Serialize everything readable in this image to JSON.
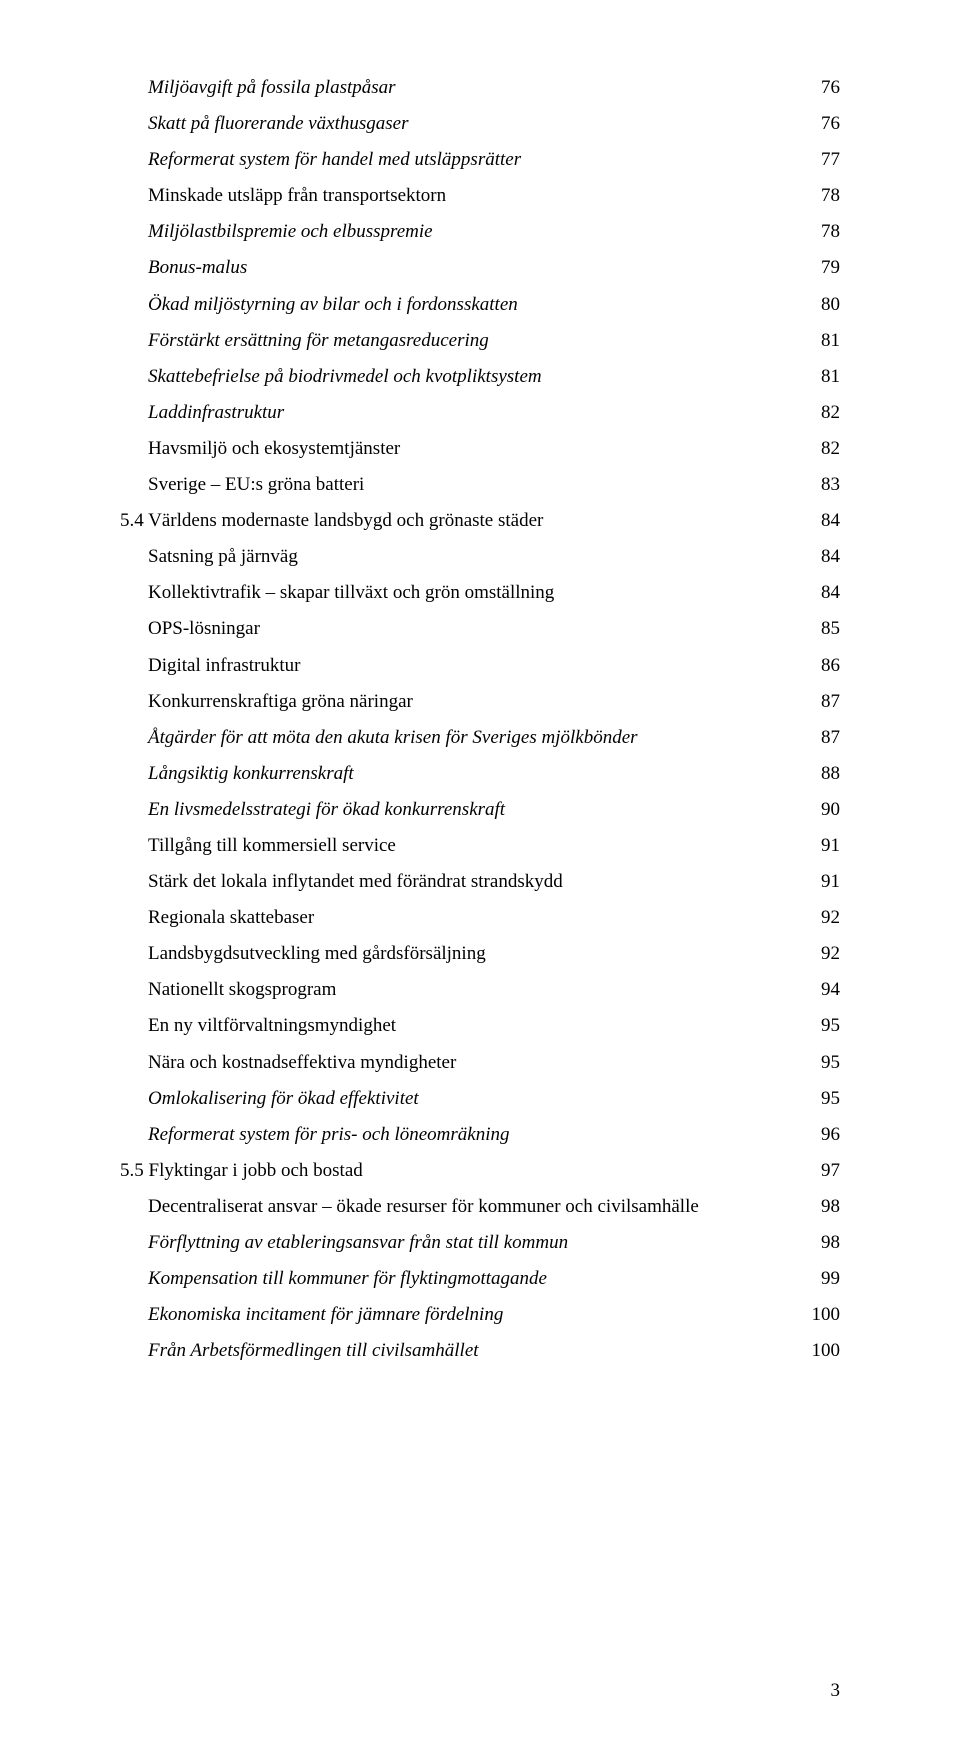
{
  "page_number": "3",
  "toc": [
    {
      "title": "Miljöavgift på fossila plastpåsar",
      "page": "76",
      "indent": 1,
      "italic": true
    },
    {
      "title": "Skatt på fluorerande växthusgaser",
      "page": "76",
      "indent": 1,
      "italic": true
    },
    {
      "title": "Reformerat system för handel med utsläppsrätter",
      "page": "77",
      "indent": 1,
      "italic": true
    },
    {
      "title": "Minskade utsläpp från transportsektorn",
      "page": "78",
      "indent": 1,
      "italic": false
    },
    {
      "title": "Miljölastbilspremie och elbusspremie",
      "page": "78",
      "indent": 1,
      "italic": true
    },
    {
      "title": "Bonus-malus",
      "page": "79",
      "indent": 1,
      "italic": true
    },
    {
      "title": "Ökad miljöstyrning av bilar och i fordonsskatten",
      "page": "80",
      "indent": 1,
      "italic": true
    },
    {
      "title": "Förstärkt ersättning för metangasreducering",
      "page": "81",
      "indent": 1,
      "italic": true
    },
    {
      "title": "Skattebefrielse på biodrivmedel och kvotpliktsystem",
      "page": "81",
      "indent": 1,
      "italic": true
    },
    {
      "title": "Laddinfrastruktur",
      "page": "82",
      "indent": 1,
      "italic": true
    },
    {
      "title": "Havsmiljö och ekosystemtjänster",
      "page": "82",
      "indent": 1,
      "italic": false
    },
    {
      "title": "Sverige – EU:s gröna batteri",
      "page": "83",
      "indent": 1,
      "italic": false
    },
    {
      "title": "5.4 Världens modernaste landsbygd och grönaste städer",
      "page": "84",
      "indent": 0,
      "italic": false
    },
    {
      "title": "Satsning på järnväg",
      "page": "84",
      "indent": 1,
      "italic": false
    },
    {
      "title": "Kollektivtrafik – skapar tillväxt och grön omställning",
      "page": "84",
      "indent": 1,
      "italic": false
    },
    {
      "title": "OPS-lösningar",
      "page": "85",
      "indent": 1,
      "italic": false
    },
    {
      "title": "Digital infrastruktur",
      "page": "86",
      "indent": 1,
      "italic": false
    },
    {
      "title": "Konkurrenskraftiga gröna näringar",
      "page": "87",
      "indent": 1,
      "italic": false
    },
    {
      "title": "Åtgärder för att möta den akuta krisen för Sveriges mjölkbönder",
      "page": "87",
      "indent": 1,
      "italic": true
    },
    {
      "title": "Långsiktig konkurrenskraft",
      "page": "88",
      "indent": 1,
      "italic": true
    },
    {
      "title": "En livsmedelsstrategi för ökad konkurrenskraft",
      "page": "90",
      "indent": 1,
      "italic": true
    },
    {
      "title": "Tillgång till kommersiell service",
      "page": "91",
      "indent": 1,
      "italic": false
    },
    {
      "title": "Stärk det lokala inflytandet med förändrat strandskydd",
      "page": "91",
      "indent": 1,
      "italic": false
    },
    {
      "title": "Regionala skattebaser",
      "page": "92",
      "indent": 1,
      "italic": false
    },
    {
      "title": "Landsbygdsutveckling med gårdsförsäljning",
      "page": "92",
      "indent": 1,
      "italic": false
    },
    {
      "title": "Nationellt skogsprogram",
      "page": "94",
      "indent": 1,
      "italic": false
    },
    {
      "title": "En ny viltförvaltningsmyndighet",
      "page": "95",
      "indent": 1,
      "italic": false
    },
    {
      "title": "Nära och kostnadseffektiva myndigheter",
      "page": "95",
      "indent": 1,
      "italic": false
    },
    {
      "title": "Omlokalisering för ökad effektivitet",
      "page": "95",
      "indent": 1,
      "italic": true
    },
    {
      "title": "Reformerat system för pris- och löneomräkning",
      "page": "96",
      "indent": 1,
      "italic": true
    },
    {
      "title": "5.5 Flyktingar i jobb och bostad",
      "page": "97",
      "indent": 0,
      "italic": false
    },
    {
      "title": "Decentraliserat ansvar – ökade resurser för kommuner och civilsamhälle",
      "page": "98",
      "indent": 1,
      "italic": false
    },
    {
      "title": "Förflyttning av etableringsansvar från stat till kommun",
      "page": "98",
      "indent": 1,
      "italic": true
    },
    {
      "title": "Kompensation till kommuner för flyktingmottagande",
      "page": "99",
      "indent": 1,
      "italic": true
    },
    {
      "title": "Ekonomiska incitament för jämnare fördelning",
      "page": "100",
      "indent": 1,
      "italic": true
    },
    {
      "title": "Från Arbetsförmedlingen till civilsamhället",
      "page": "100",
      "indent": 1,
      "italic": true
    }
  ]
}
